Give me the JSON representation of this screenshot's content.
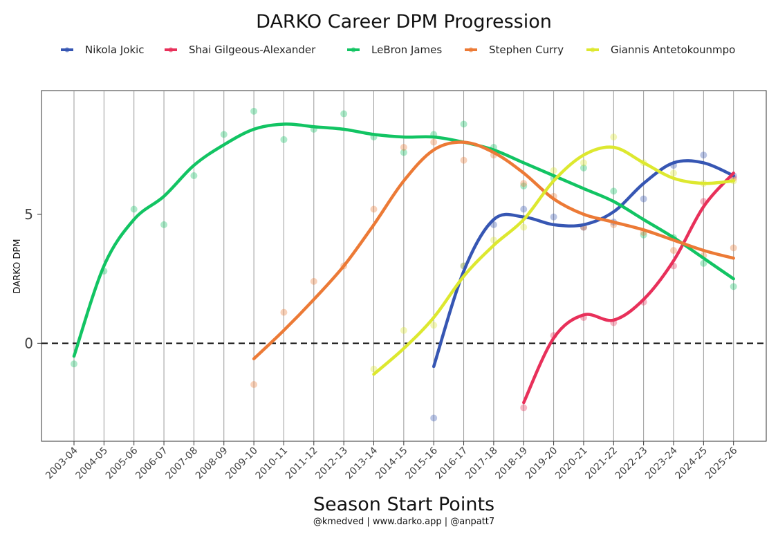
{
  "chart_data": {
    "type": "scatter",
    "title": "DARKO Career DPM Progression",
    "xlabel": "Season Start Points",
    "ylabel": "DARKO DPM",
    "caption": "@kmedved | www.darko.app | @anpatt7",
    "categories": [
      "2003-04",
      "2004-05",
      "2005-06",
      "2006-07",
      "2007-08",
      "2008-09",
      "2009-10",
      "2010-11",
      "2011-12",
      "2012-13",
      "2013-14",
      "2014-15",
      "2015-16",
      "2016-17",
      "2017-18",
      "2018-19",
      "2019-20",
      "2020-21",
      "2021-22",
      "2022-23",
      "2023-24",
      "2024-25",
      "2025-26"
    ],
    "yticks": [
      0,
      5
    ],
    "ylim": [
      -3.8,
      9.8
    ],
    "reference_line": 0,
    "grid": "vertical lines at season starts",
    "legend_position": "top",
    "series": [
      {
        "name": "Nikola Jokic",
        "color": "#3656b3",
        "values": [
          null,
          null,
          null,
          null,
          null,
          null,
          null,
          null,
          null,
          null,
          null,
          null,
          -2.9,
          3.0,
          4.6,
          5.2,
          4.9,
          4.5,
          4.7,
          5.6,
          6.9,
          7.3,
          6.5
        ],
        "trend_values": [
          null,
          null,
          null,
          null,
          null,
          null,
          null,
          null,
          null,
          null,
          null,
          null,
          -0.9,
          2.8,
          4.8,
          4.9,
          4.6,
          4.6,
          5.1,
          6.2,
          7.0,
          7.0,
          6.5
        ]
      },
      {
        "name": "Shai Gilgeous-Alexander",
        "color": "#e8305a",
        "values": [
          null,
          null,
          null,
          null,
          null,
          null,
          null,
          null,
          null,
          null,
          null,
          null,
          null,
          null,
          null,
          -2.5,
          0.3,
          1.0,
          0.8,
          1.6,
          3.0,
          5.5,
          6.4
        ],
        "trend_values": [
          null,
          null,
          null,
          null,
          null,
          null,
          null,
          null,
          null,
          null,
          null,
          null,
          null,
          null,
          null,
          -2.3,
          0.2,
          1.1,
          0.9,
          1.7,
          3.2,
          5.3,
          6.6
        ]
      },
      {
        "name": "LeBron James",
        "color": "#12c463",
        "values": [
          -0.8,
          2.8,
          5.2,
          4.6,
          6.5,
          8.1,
          9.0,
          7.9,
          8.3,
          8.9,
          8.0,
          7.4,
          8.1,
          8.5,
          7.6,
          6.1,
          6.4,
          6.8,
          5.9,
          4.2,
          4.1,
          3.1,
          2.2
        ],
        "trend_values": [
          -0.5,
          3.0,
          4.8,
          5.7,
          6.9,
          7.7,
          8.3,
          8.5,
          8.4,
          8.3,
          8.1,
          8.0,
          8.0,
          7.8,
          7.5,
          7.0,
          6.5,
          6.0,
          5.5,
          4.8,
          4.1,
          3.3,
          2.5
        ]
      },
      {
        "name": "Stephen Curry",
        "color": "#ec7a36",
        "values": [
          null,
          null,
          null,
          null,
          null,
          null,
          -1.6,
          1.2,
          2.4,
          3.0,
          5.2,
          7.6,
          7.8,
          7.1,
          7.3,
          6.2,
          5.7,
          4.5,
          4.6,
          4.3,
          3.6,
          3.4,
          3.7
        ],
        "trend_values": [
          null,
          null,
          null,
          null,
          null,
          null,
          -0.6,
          0.5,
          1.7,
          3.0,
          4.6,
          6.3,
          7.5,
          7.8,
          7.4,
          6.6,
          5.6,
          5.0,
          4.7,
          4.4,
          4.0,
          3.6,
          3.3
        ]
      },
      {
        "name": "Giannis Antetokounmpo",
        "color": "#dde82f",
        "values": [
          null,
          null,
          null,
          null,
          null,
          null,
          null,
          null,
          null,
          null,
          -1.0,
          0.5,
          0.7,
          3.0,
          4.0,
          4.5,
          6.7,
          7.0,
          8.0,
          7.0,
          6.6,
          6.2,
          6.3
        ],
        "trend_values": [
          null,
          null,
          null,
          null,
          null,
          null,
          null,
          null,
          null,
          null,
          -1.2,
          -0.2,
          1.0,
          2.6,
          3.8,
          4.8,
          6.3,
          7.3,
          7.6,
          7.0,
          6.4,
          6.2,
          6.3
        ]
      }
    ]
  }
}
